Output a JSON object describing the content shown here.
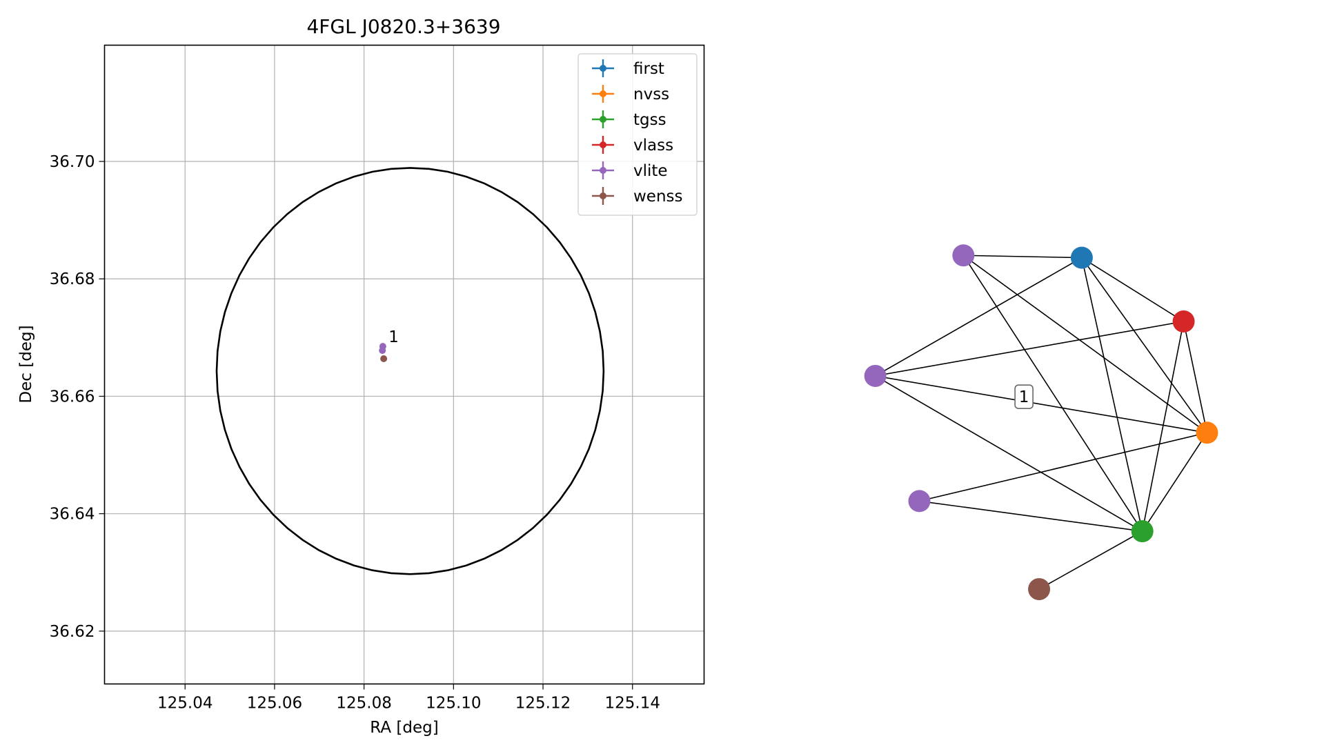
{
  "chart_data": [
    {
      "type": "scatter",
      "title": "4FGL J0820.3+3639",
      "xlabel": "RA [deg]",
      "ylabel": "Dec [deg]",
      "xlim": [
        125.022,
        125.156
      ],
      "ylim": [
        36.611,
        36.7198
      ],
      "xticks": [
        125.04,
        125.06,
        125.08,
        125.1,
        125.12,
        125.14
      ],
      "xtick_labels": [
        "125.04",
        "125.06",
        "125.08",
        "125.10",
        "125.12",
        "125.14"
      ],
      "yticks": [
        36.62,
        36.64,
        36.66,
        36.68,
        36.7
      ],
      "ytick_labels": [
        "36.62",
        "36.64",
        "36.66",
        "36.68",
        "36.70"
      ],
      "grid": true,
      "legend_position": "top-right",
      "error_ellipse": {
        "center_ra": 125.0903,
        "center_dec": 36.6643,
        "semi_ra": 0.04325,
        "semi_dec": 0.0346
      },
      "series": [
        {
          "name": "first",
          "color": "#1f77b4",
          "points": []
        },
        {
          "name": "nvss",
          "color": "#ff7f0e",
          "points": []
        },
        {
          "name": "tgss",
          "color": "#2ca02c",
          "points": []
        },
        {
          "name": "vlass",
          "color": "#d62728",
          "points": []
        },
        {
          "name": "vlite",
          "color": "#9467bd",
          "points": [
            {
              "ra": 125.0842,
              "dec": 36.6685
            },
            {
              "ra": 125.0841,
              "dec": 36.6678
            }
          ]
        },
        {
          "name": "wenss",
          "color": "#8c564b",
          "points": [
            {
              "ra": 125.0844,
              "dec": 36.6664
            }
          ]
        }
      ],
      "annotations": [
        {
          "text": "1",
          "ra": 125.0855,
          "dec": 36.6692
        }
      ]
    },
    {
      "type": "network",
      "nodes": [
        {
          "id": "vlite_a",
          "catalog": "vlite",
          "color": "#9467bd",
          "pos": [
            -0.7,
            0.82
          ]
        },
        {
          "id": "first",
          "catalog": "first",
          "color": "#1f77b4",
          "pos": [
            0.16,
            0.8
          ]
        },
        {
          "id": "vlass",
          "catalog": "vlass",
          "color": "#d62728",
          "pos": [
            0.9,
            0.25
          ]
        },
        {
          "id": "vlite_b",
          "catalog": "vlite",
          "color": "#9467bd",
          "pos": [
            -1.34,
            -0.22
          ]
        },
        {
          "id": "nvss",
          "catalog": "nvss",
          "color": "#ff7f0e",
          "pos": [
            1.07,
            -0.71
          ]
        },
        {
          "id": "vlite_c",
          "catalog": "vlite",
          "color": "#9467bd",
          "pos": [
            -1.02,
            -1.3
          ]
        },
        {
          "id": "tgss",
          "catalog": "tgss",
          "color": "#2ca02c",
          "pos": [
            0.6,
            -1.56
          ]
        },
        {
          "id": "wenss",
          "catalog": "wenss",
          "color": "#8c564b",
          "pos": [
            -0.15,
            -2.06
          ]
        }
      ],
      "edges": [
        [
          "vlite_a",
          "first"
        ],
        [
          "vlite_a",
          "nvss"
        ],
        [
          "vlite_a",
          "tgss"
        ],
        [
          "first",
          "vlite_b"
        ],
        [
          "first",
          "vlass"
        ],
        [
          "first",
          "nvss"
        ],
        [
          "first",
          "tgss"
        ],
        [
          "vlass",
          "vlite_b"
        ],
        [
          "vlass",
          "nvss"
        ],
        [
          "vlass",
          "tgss"
        ],
        [
          "vlite_b",
          "nvss"
        ],
        [
          "vlite_b",
          "tgss"
        ],
        [
          "nvss",
          "vlite_c"
        ],
        [
          "nvss",
          "tgss"
        ],
        [
          "vlite_c",
          "tgss"
        ],
        [
          "tgss",
          "wenss"
        ]
      ],
      "labels": [
        {
          "text": "1",
          "pos": [
            -0.26,
            -0.4
          ]
        }
      ]
    }
  ]
}
